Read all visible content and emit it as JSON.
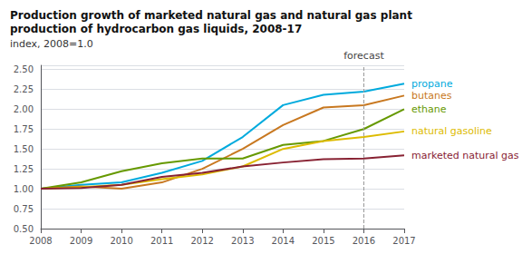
{
  "chart_data": {
    "type": "line",
    "title": "Production growth of marketed natural gas and natural gas plant\nproduction of hydrocarbon gas liquids, 2008-17",
    "subtitle": "index, 2008=1.0",
    "x": [
      2008,
      2009,
      2010,
      2011,
      2012,
      2013,
      2014,
      2015,
      2016,
      2017
    ],
    "series": [
      {
        "name": "propane",
        "color": "#00aadd",
        "values": [
          1.0,
          1.05,
          1.08,
          1.2,
          1.35,
          1.65,
          2.05,
          2.18,
          2.22,
          2.32
        ]
      },
      {
        "name": "butanes",
        "color": "#c87820",
        "values": [
          1.0,
          1.03,
          1.0,
          1.08,
          1.25,
          1.5,
          1.8,
          2.02,
          2.05,
          2.17
        ]
      },
      {
        "name": "ethane",
        "color": "#669900",
        "values": [
          1.0,
          1.08,
          1.22,
          1.32,
          1.38,
          1.38,
          1.55,
          1.6,
          1.75,
          2.0
        ]
      },
      {
        "name": "natural gasoline",
        "color": "#ddbb00",
        "values": [
          1.0,
          1.02,
          1.05,
          1.12,
          1.18,
          1.28,
          1.5,
          1.6,
          1.65,
          1.72
        ]
      },
      {
        "name": "marketed natural gas",
        "color": "#882233",
        "values": [
          1.0,
          1.01,
          1.05,
          1.15,
          1.2,
          1.28,
          1.33,
          1.37,
          1.38,
          1.42
        ]
      }
    ],
    "annotations": [
      {
        "text": "forecast",
        "x": 2016
      }
    ],
    "xlim": [
      2008,
      2017
    ],
    "xticks": [
      2008,
      2009,
      2010,
      2011,
      2012,
      2013,
      2014,
      2015,
      2016,
      2017
    ],
    "ylim": [
      0.5,
      2.55
    ],
    "yticks": [
      {
        "value": 0.5,
        "label": "0.50"
      },
      {
        "value": 0.75,
        "label": "0.75"
      },
      {
        "value": 1.0,
        "label": "1.00"
      },
      {
        "value": 1.25,
        "label": "1.25"
      },
      {
        "value": 1.5,
        "label": "1.50"
      },
      {
        "value": 1.75,
        "label": "1.75"
      },
      {
        "value": 2.0,
        "label": "2.00"
      },
      {
        "value": 2.25,
        "label": "2.25"
      },
      {
        "value": 2.5,
        "label": "2.50"
      }
    ],
    "grid": true
  }
}
